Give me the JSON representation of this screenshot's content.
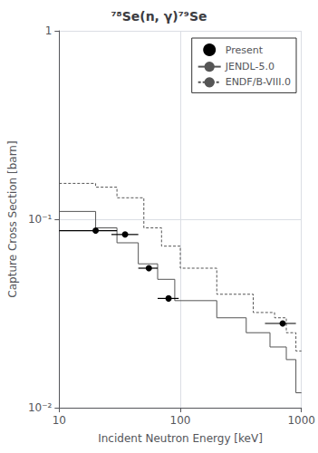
{
  "chart_data": {
    "type": "line",
    "title": "⁷⁸Se(n, γ)⁷⁹Se",
    "xlabel": "Incident Neutron Energy [keV]",
    "ylabel": "Capture Cross Section [barn]",
    "log": true,
    "xlim": [
      10,
      1000
    ],
    "ylim": [
      0.01,
      1.0
    ],
    "xticks": [
      10,
      100,
      1000
    ],
    "yticks": [
      {
        "value": 0.01,
        "label": "10⁻²"
      },
      {
        "value": 0.1,
        "label": "10⁻¹"
      },
      1
    ],
    "grid": true,
    "legend": "upper right",
    "series": [
      {
        "name": "Present",
        "type": "scatter",
        "color": "#000000",
        "marker": "circle",
        "x": [
          20,
          35,
          55,
          80,
          700
        ],
        "values": [
          0.087,
          0.083,
          0.055,
          0.038,
          0.028
        ],
        "xerr_lo": [
          10,
          8,
          10,
          15,
          200
        ],
        "xerr_hi": [
          10,
          10,
          10,
          17,
          200
        ]
      },
      {
        "name": "JENDL-5.0",
        "type": "line",
        "color": "#555555",
        "line_style": "solid",
        "x": [
          10,
          20,
          20,
          30,
          30,
          45,
          45,
          65,
          65,
          90,
          90,
          200,
          200,
          350,
          350,
          550,
          550,
          750,
          750,
          900,
          900,
          1000
        ],
        "values": [
          0.11,
          0.11,
          0.09,
          0.09,
          0.075,
          0.075,
          0.058,
          0.058,
          0.048,
          0.048,
          0.037,
          0.037,
          0.03,
          0.03,
          0.025,
          0.025,
          0.021,
          0.021,
          0.018,
          0.018,
          0.012,
          0.012
        ]
      },
      {
        "name": "ENDF/B-VIII.0",
        "type": "line",
        "color": "#555555",
        "line_style": "dashed",
        "x": [
          10,
          20,
          20,
          30,
          30,
          50,
          50,
          70,
          70,
          100,
          100,
          200,
          200,
          400,
          400,
          600,
          600,
          750,
          750,
          900,
          900,
          1000
        ],
        "values": [
          0.155,
          0.155,
          0.148,
          0.148,
          0.13,
          0.13,
          0.09,
          0.09,
          0.072,
          0.072,
          0.055,
          0.055,
          0.04,
          0.04,
          0.032,
          0.032,
          0.03,
          0.03,
          0.025,
          0.025,
          0.02,
          0.02
        ]
      }
    ]
  }
}
